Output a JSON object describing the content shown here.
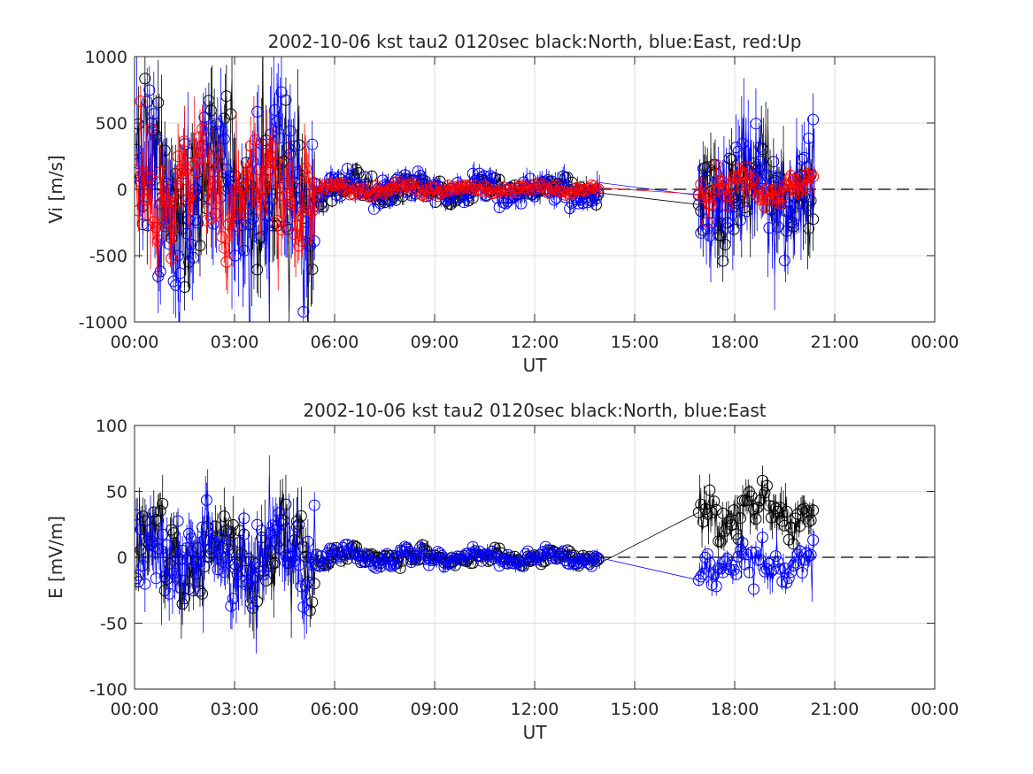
{
  "chart_data": [
    {
      "type": "scatter",
      "title": "2002-10-06 kst tau2 0120sec black:North, blue:East, red:Up",
      "xlabel": "UT",
      "ylabel": "Vi [m/s]",
      "xlim": [
        0,
        24
      ],
      "ylim": [
        -1000,
        1000
      ],
      "xticks": [
        "00:00",
        "03:00",
        "06:00",
        "09:00",
        "12:00",
        "15:00",
        "18:00",
        "21:00",
        "00:00"
      ],
      "yticks": [
        "-1000",
        "-500",
        "0",
        "500",
        "1000"
      ],
      "grid": true,
      "reference_line": 0,
      "colors": {
        "North": "#000000",
        "East": "#0000ff",
        "Up": "#ff0000"
      },
      "series": [
        {
          "key": "north",
          "color": "#000000",
          "amp_by_segment": [
            700,
            150,
            110,
            500
          ],
          "noise": 0.55
        },
        {
          "key": "east",
          "color": "#0000ff",
          "amp_by_segment": [
            750,
            140,
            150,
            550
          ],
          "noise": 0.6
        },
        {
          "key": "up",
          "color": "#ff0000",
          "amp_by_segment": [
            550,
            70,
            50,
            150
          ],
          "noise": 0.45
        }
      ]
    },
    {
      "type": "scatter",
      "title": "2002-10-06 kst tau2 0120sec black:North, blue:East",
      "xlabel": "UT",
      "ylabel": "E [mV/m]",
      "xlim": [
        0,
        24
      ],
      "ylim": [
        -100,
        100
      ],
      "xticks": [
        "00:00",
        "03:00",
        "06:00",
        "09:00",
        "12:00",
        "15:00",
        "18:00",
        "21:00",
        "00:00"
      ],
      "yticks": [
        "-100",
        "-50",
        "0",
        "50",
        "100"
      ],
      "grid": true,
      "reference_line": 0,
      "colors": {
        "North": "#000000",
        "East": "#0000ff"
      },
      "series": [
        {
          "key": "north",
          "color": "#000000",
          "amp_by_segment": [
            45,
            10,
            8,
            25
          ],
          "noise": 0.5,
          "late_offset": 35
        },
        {
          "key": "east",
          "color": "#0000ff",
          "amp_by_segment": [
            45,
            10,
            8,
            18
          ],
          "noise": 0.5,
          "late_offset": -5
        }
      ]
    }
  ]
}
